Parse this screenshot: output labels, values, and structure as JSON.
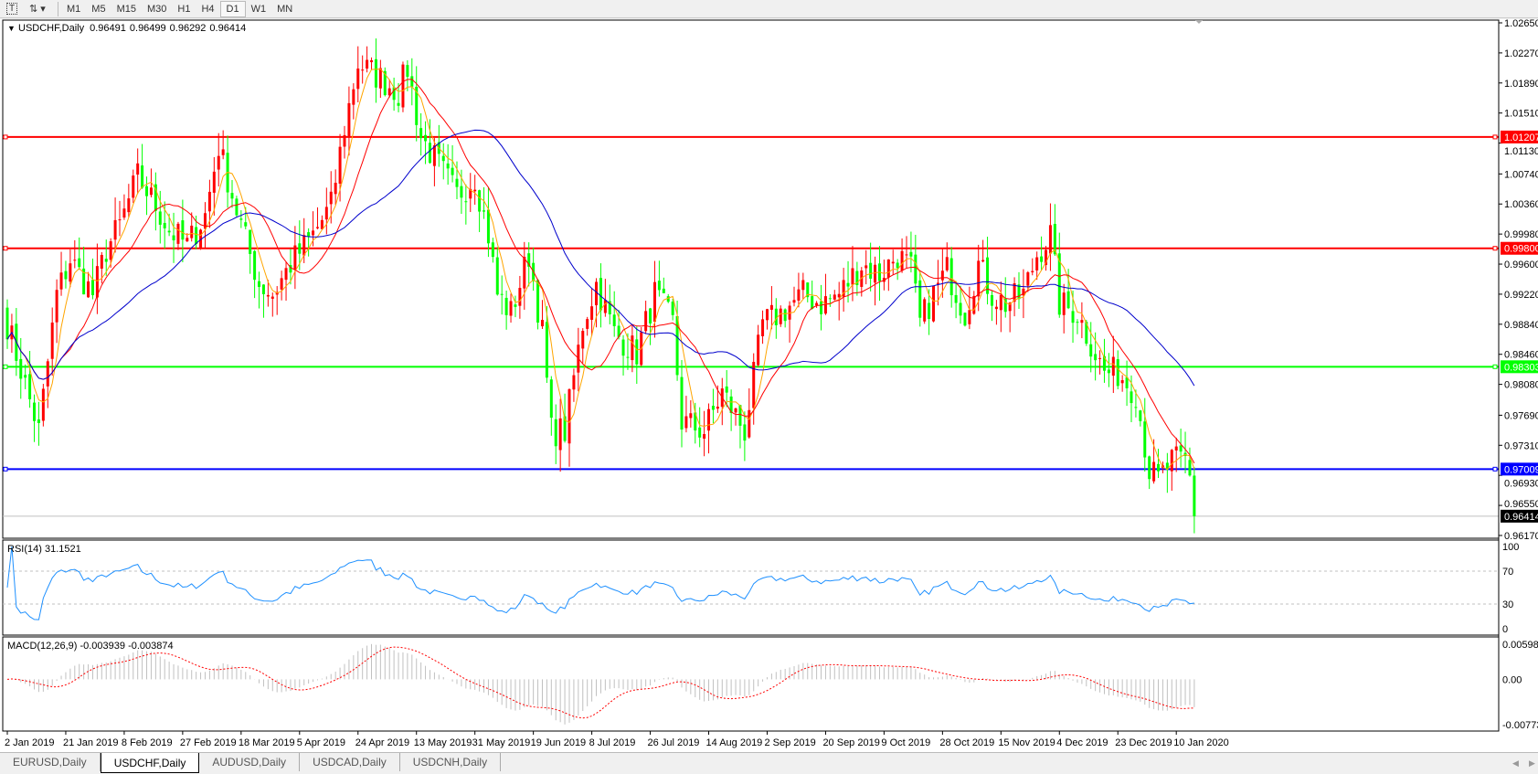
{
  "toolbar": {
    "tools": [
      "text-tool",
      "line-tool"
    ],
    "timeframes": [
      "M1",
      "M5",
      "M15",
      "M30",
      "H1",
      "H4",
      "D1",
      "W1",
      "MN"
    ],
    "active_timeframe": "D1"
  },
  "header": {
    "symbol": "USDCHF,Daily",
    "open": "0.96491",
    "high": "0.96499",
    "low": "0.96292",
    "close": "0.96414"
  },
  "price_axis": [
    "1.02650",
    "1.02270",
    "1.01890",
    "1.01510",
    "1.01130",
    "1.00740",
    "1.00360",
    "0.99980",
    "0.99600",
    "0.99220",
    "0.98840",
    "0.98460",
    "0.98080",
    "0.97690",
    "0.97310",
    "0.96930",
    "0.96550",
    "0.96170"
  ],
  "levels": [
    {
      "label": "1.01207",
      "price": 1.01207,
      "color": "#ff0000"
    },
    {
      "label": "0.99800",
      "price": 0.998,
      "color": "#ff0000"
    },
    {
      "label": "0.98303",
      "price": 0.98303,
      "color": "#00ff00"
    },
    {
      "label": "0.97009",
      "price": 0.97009,
      "color": "#0000ff"
    }
  ],
  "current_price": {
    "label": "0.96414",
    "price": 0.96414
  },
  "colors": {
    "bull": "#ff0000",
    "bear": "#00ff00",
    "ma_fast": "#ffa500",
    "ma_mid": "#ff0000",
    "ma_slow": "#0000cc",
    "rsi": "#1e90ff",
    "macd_signal": "#ff0000",
    "macd_hist": "#c0c0c0"
  },
  "rsi": {
    "label": "RSI(14) 31.1521",
    "axis": [
      "100",
      "70",
      "30",
      "0"
    ]
  },
  "macd": {
    "label": "MACD(12,26,9) -0.003939 -0.003874",
    "axis": [
      "0.005986",
      "0.00",
      "-0.007737"
    ]
  },
  "date_axis": [
    "2 Jan 2019",
    "21 Jan 2019",
    "8 Feb 2019",
    "27 Feb 2019",
    "18 Mar 2019",
    "5 Apr 2019",
    "24 Apr 2019",
    "13 May 2019",
    "31 May 2019",
    "19 Jun 2019",
    "8 Jul 2019",
    "26 Jul 2019",
    "14 Aug 2019",
    "2 Sep 2019",
    "20 Sep 2019",
    "9 Oct 2019",
    "28 Oct 2019",
    "15 Nov 2019",
    "4 Dec 2019",
    "23 Dec 2019",
    "10 Jan 2020"
  ],
  "tabs": [
    "EURUSD,Daily",
    "USDCHF,Daily",
    "AUDUSD,Daily",
    "USDCAD,Daily",
    "USDCNH,Daily"
  ],
  "active_tab": 1,
  "chart_data": {
    "type": "candlestick",
    "title": "USDCHF,Daily",
    "bar_count": 265,
    "ylim": [
      0.9617,
      1.0265
    ],
    "close_path": [
      [
        0,
        0.9885
      ],
      [
        7,
        0.9749
      ],
      [
        11,
        0.9922
      ],
      [
        14,
        0.9966
      ],
      [
        19,
        0.9922
      ],
      [
        22,
        0.9978
      ],
      [
        25,
        1.0009
      ],
      [
        29,
        1.0071
      ],
      [
        33,
        1.0034
      ],
      [
        36,
        1.0003
      ],
      [
        40,
        0.9984
      ],
      [
        44,
        1.0022
      ],
      [
        47,
        1.0109
      ],
      [
        51,
        1.0028
      ],
      [
        56,
        0.9935
      ],
      [
        59,
        0.9922
      ],
      [
        63,
        0.996
      ],
      [
        68,
        0.9997
      ],
      [
        72,
        1.0034
      ],
      [
        75,
        1.0133
      ],
      [
        78,
        1.0214
      ],
      [
        83,
        1.0195
      ],
      [
        87,
        1.0177
      ],
      [
        89,
        1.0208
      ],
      [
        92,
        1.0121
      ],
      [
        96,
        1.0084
      ],
      [
        100,
        1.0047
      ],
      [
        104,
        1.0071
      ],
      [
        107,
        0.9997
      ],
      [
        109,
        0.9922
      ],
      [
        112,
        0.9898
      ],
      [
        116,
        0.9972
      ],
      [
        119,
        0.9873
      ],
      [
        121,
        0.9749
      ],
      [
        124,
        0.9749
      ],
      [
        128,
        0.9885
      ],
      [
        131,
        0.9935
      ],
      [
        135,
        0.9873
      ],
      [
        140,
        0.9848
      ],
      [
        144,
        0.9922
      ],
      [
        148,
        0.9885
      ],
      [
        150,
        0.9761
      ],
      [
        155,
        0.9749
      ],
      [
        159,
        0.9798
      ],
      [
        164,
        0.9749
      ],
      [
        168,
        0.9885
      ],
      [
        172,
        0.9898
      ],
      [
        177,
        0.9922
      ],
      [
        181,
        0.991
      ],
      [
        185,
        0.9922
      ],
      [
        190,
        0.996
      ],
      [
        194,
        0.9947
      ],
      [
        198,
        0.9972
      ],
      [
        201,
        0.9953
      ],
      [
        203,
        0.9885
      ],
      [
        206,
        0.9922
      ],
      [
        209,
        0.9953
      ],
      [
        213,
        0.9898
      ],
      [
        216,
        0.996
      ],
      [
        219,
        0.9922
      ],
      [
        222,
        0.991
      ],
      [
        226,
        0.9922
      ],
      [
        229,
        0.9972
      ],
      [
        232,
        0.9997
      ],
      [
        234,
        0.991
      ],
      [
        238,
        0.9898
      ],
      [
        241,
        0.986
      ],
      [
        244,
        0.9823
      ],
      [
        247,
        0.9823
      ],
      [
        251,
        0.9798
      ],
      [
        254,
        0.9699
      ],
      [
        256,
        0.9687
      ],
      [
        259,
        0.9711
      ],
      [
        262,
        0.9711
      ],
      [
        263,
        0.969
      ],
      [
        264,
        0.96414
      ]
    ],
    "rsi_levels": [
      70,
      30
    ],
    "rsi_range": [
      0,
      100
    ],
    "macd_range": [
      -0.007737,
      0.005986
    ]
  }
}
